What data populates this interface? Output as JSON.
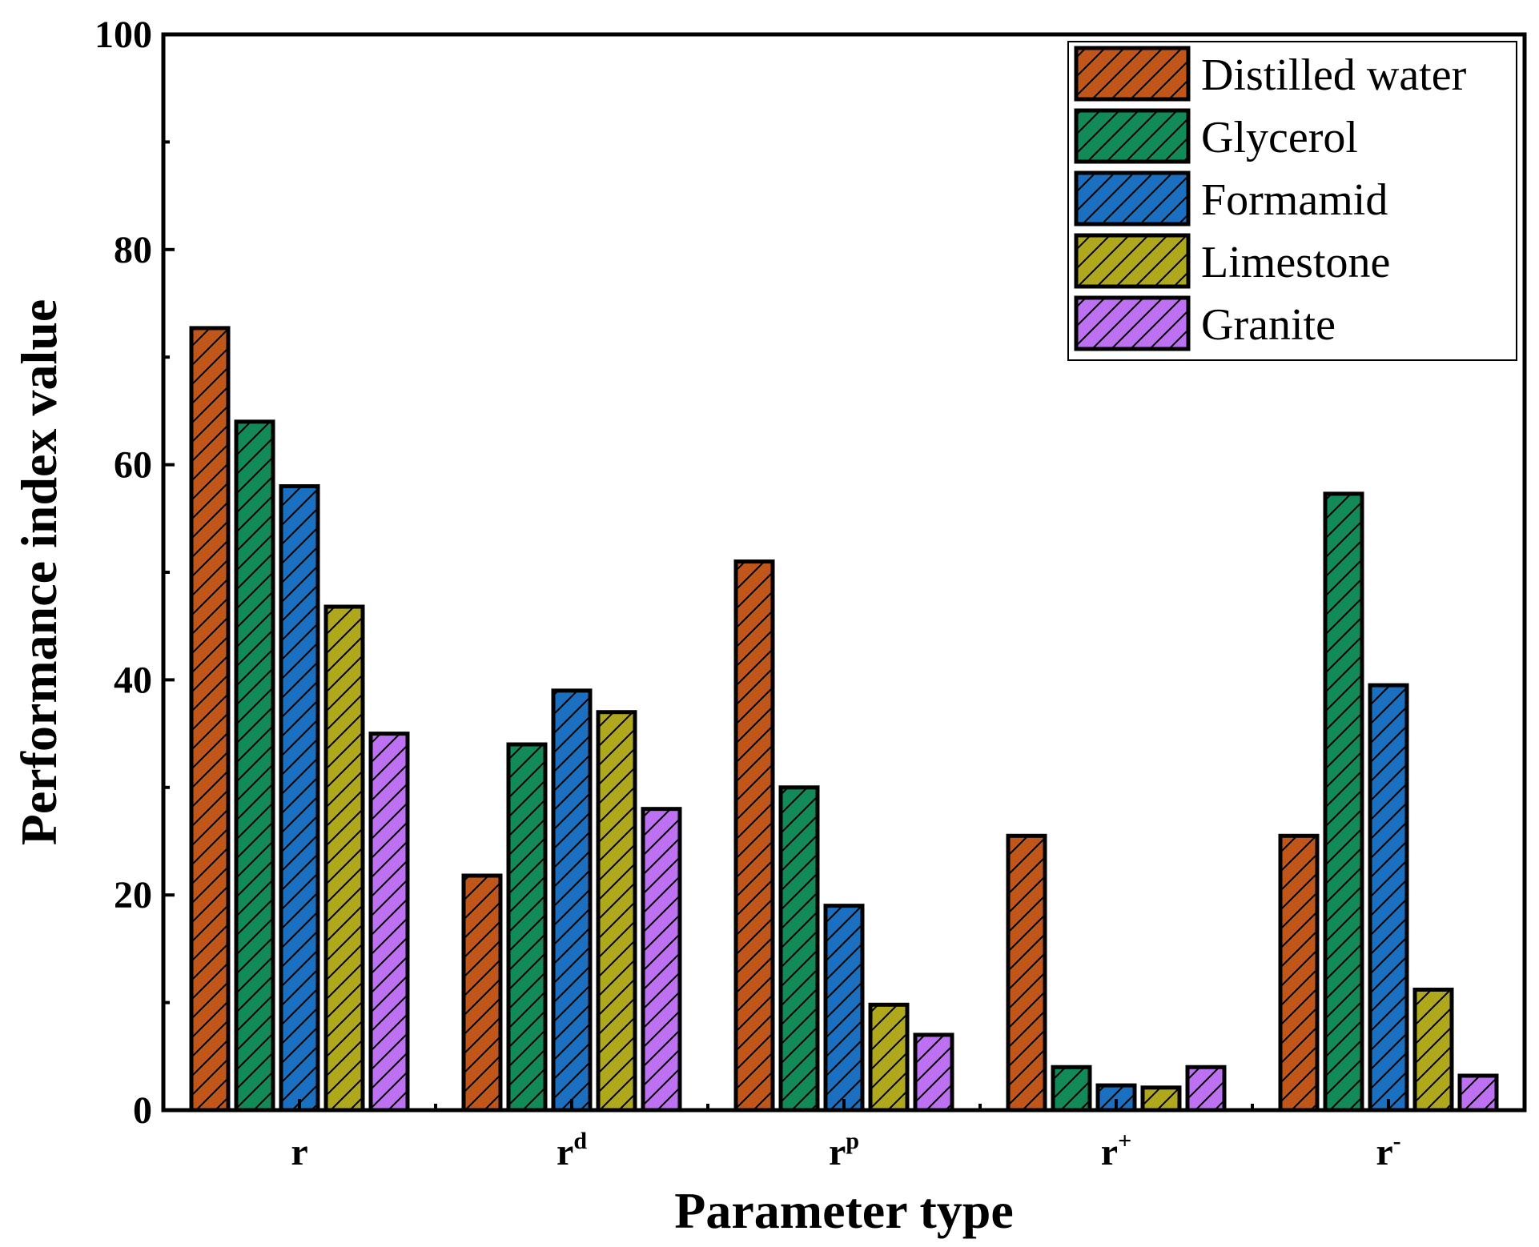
{
  "chart_data": {
    "type": "bar",
    "title": "",
    "xlabel": "Parameter type",
    "ylabel": "Performance index value",
    "ylim": [
      0,
      100
    ],
    "yticks": [
      0,
      20,
      40,
      60,
      80,
      100
    ],
    "categories": [
      {
        "base": "r",
        "sup": ""
      },
      {
        "base": "r",
        "sup": "d"
      },
      {
        "base": "r",
        "sup": "p"
      },
      {
        "base": "r",
        "sup": "+"
      },
      {
        "base": "r",
        "sup": "-"
      }
    ],
    "series": [
      {
        "name": "Distilled water",
        "color": "#c0561a",
        "values": [
          72.7,
          21.8,
          51.0,
          25.5,
          25.5
        ]
      },
      {
        "name": "Glycerol",
        "color": "#118a57",
        "values": [
          64.0,
          34.0,
          30.0,
          4.0,
          57.3
        ]
      },
      {
        "name": "Formamid",
        "color": "#1a6fc1",
        "values": [
          58.0,
          39.0,
          19.0,
          2.3,
          39.5
        ]
      },
      {
        "name": "Limestone",
        "color": "#b0a81c",
        "values": [
          46.8,
          37.0,
          9.8,
          2.1,
          11.2
        ]
      },
      {
        "name": "Granite",
        "color": "#bd70f2",
        "values": [
          35.0,
          28.0,
          7.0,
          4.0,
          3.2
        ]
      }
    ],
    "legend_position": "top-right",
    "grid": false
  }
}
